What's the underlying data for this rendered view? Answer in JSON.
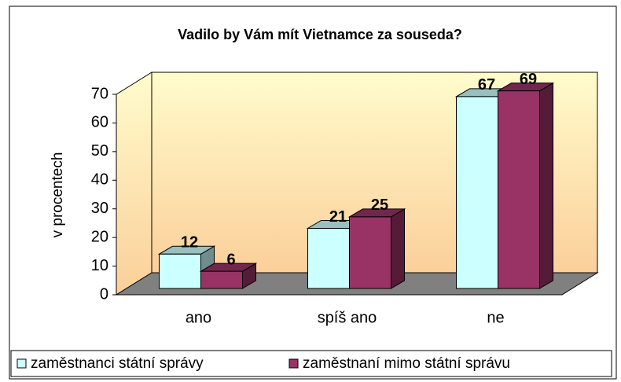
{
  "chart_data": {
    "type": "bar3d",
    "title": "Vadilo by Vám mít Vietnamce za souseda?",
    "y_label": "v procentech",
    "categories": [
      "ano",
      "spíš ano",
      "ne"
    ],
    "series": [
      {
        "name": "zaměstnanci státní správy",
        "color": "#ccffff",
        "values": [
          12,
          21,
          67
        ]
      },
      {
        "name": "zaměstnaní mimo státní správu",
        "color": "#993366",
        "values": [
          6,
          25,
          69
        ]
      }
    ],
    "ylim": [
      0,
      70
    ],
    "yticks": [
      0,
      10,
      20,
      30,
      40,
      50,
      60,
      70
    ],
    "legend": "bottom"
  }
}
